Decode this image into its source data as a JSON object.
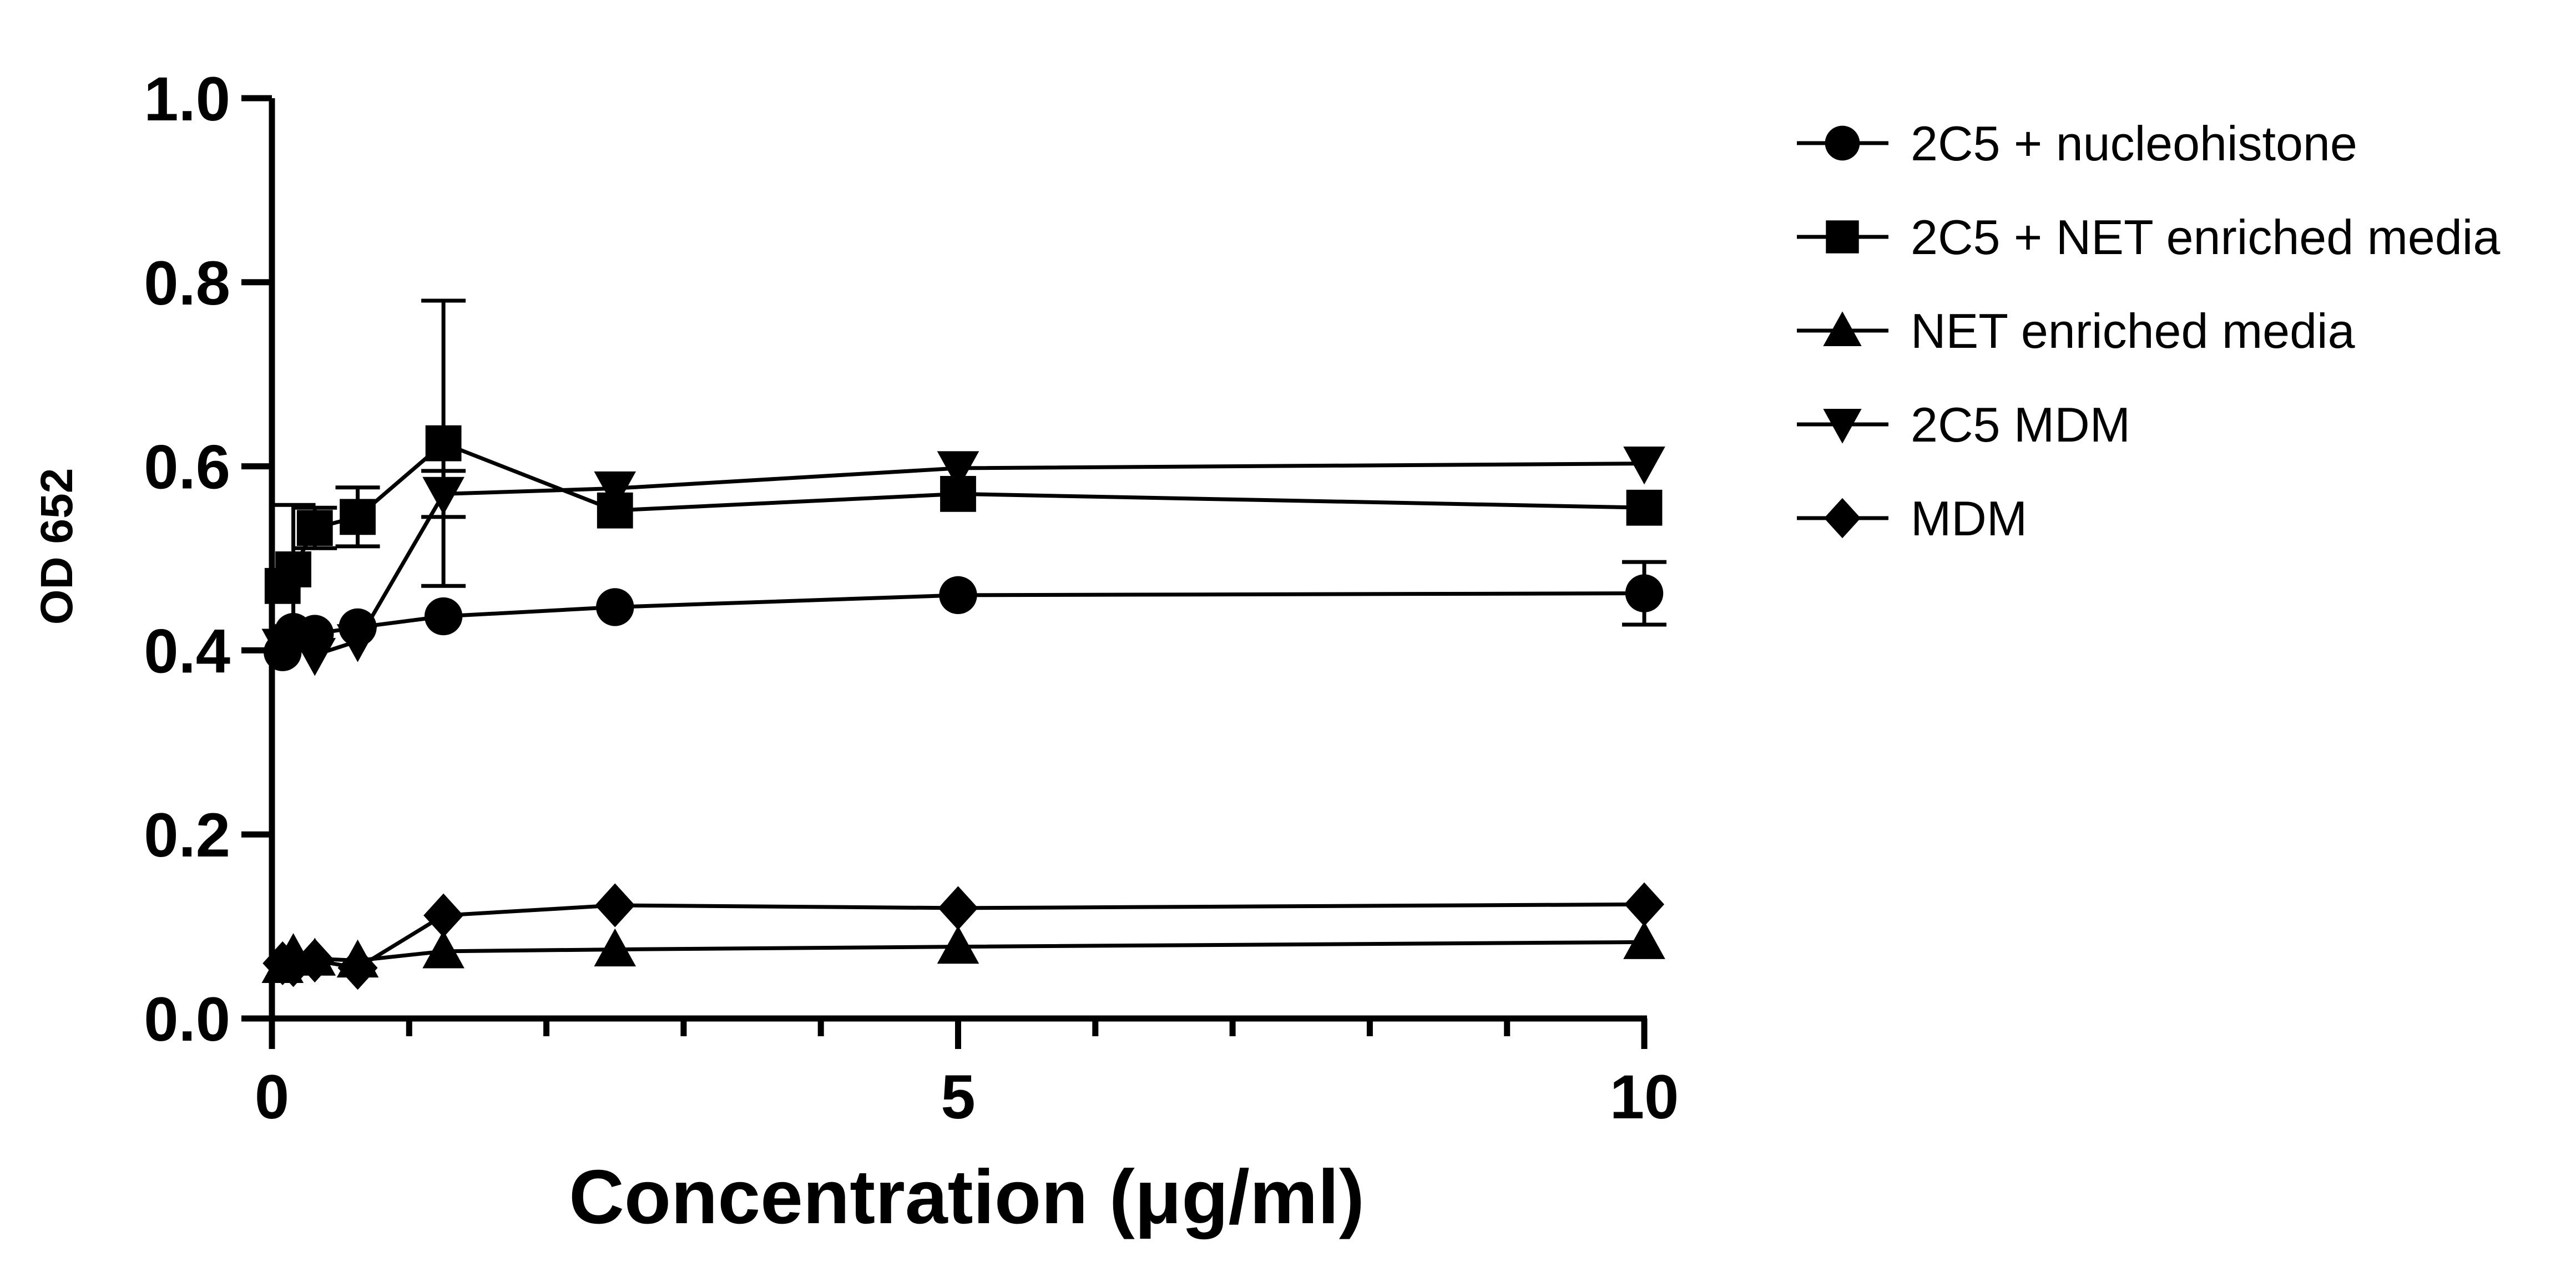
{
  "chart_data": {
    "type": "line",
    "title": "",
    "xlabel": "Concentration (μg/ml)",
    "ylabel": "OD 652",
    "xlim": [
      0,
      10
    ],
    "ylim": [
      0,
      1.0
    ],
    "x_major_ticks": [
      0,
      5,
      10
    ],
    "x_tick_labels": [
      "0",
      "5",
      "10"
    ],
    "x_minor_ticks": [
      1,
      2,
      3,
      4,
      6,
      7,
      8,
      9
    ],
    "y_ticks": [
      0.0,
      0.2,
      0.4,
      0.6,
      0.8,
      1.0
    ],
    "y_tick_labels": [
      "0.0",
      "0.2",
      "0.4",
      "0.6",
      "0.8",
      "1.0"
    ],
    "grid": false,
    "legend_position": "right",
    "x": [
      0.078,
      0.156,
      0.3125,
      0.625,
      1.25,
      2.5,
      5,
      10
    ],
    "series": [
      {
        "name": "2C5 + nucleohistone",
        "marker": "circle",
        "values": [
          0.398,
          0.42,
          0.418,
          0.425,
          0.437,
          0.447,
          0.46,
          0.462
        ],
        "error": [
          0,
          0,
          0,
          0,
          0,
          0,
          0,
          0.034
        ]
      },
      {
        "name": "2C5 + NET enriched media",
        "marker": "square",
        "values": [
          0.47,
          0.488,
          0.533,
          0.545,
          0.625,
          0.552,
          0.57,
          0.555
        ],
        "error": [
          0,
          0.07,
          0.022,
          0.032,
          0.155,
          0,
          0,
          0
        ]
      },
      {
        "name": "NET enriched media",
        "marker": "triangle-up",
        "values": [
          0.057,
          0.07,
          0.065,
          0.063,
          0.073,
          0.075,
          0.078,
          0.083
        ],
        "error": [
          0,
          0,
          0,
          0,
          0,
          0,
          0,
          0
        ]
      },
      {
        "name": "2C5 MDM",
        "marker": "triangle-down",
        "values": [
          0.405,
          0.41,
          0.395,
          0.41,
          0.57,
          0.576,
          0.598,
          0.603
        ],
        "error": [
          0,
          0,
          0,
          0,
          0.025,
          0,
          0,
          0
        ]
      },
      {
        "name": "MDM",
        "marker": "diamond",
        "values": [
          0.06,
          0.058,
          0.063,
          0.055,
          0.112,
          0.123,
          0.12,
          0.124
        ],
        "error": [
          0,
          0,
          0,
          0,
          0,
          0,
          0,
          0
        ]
      }
    ]
  },
  "colors": {
    "line": "#000000",
    "background": "#ffffff"
  }
}
